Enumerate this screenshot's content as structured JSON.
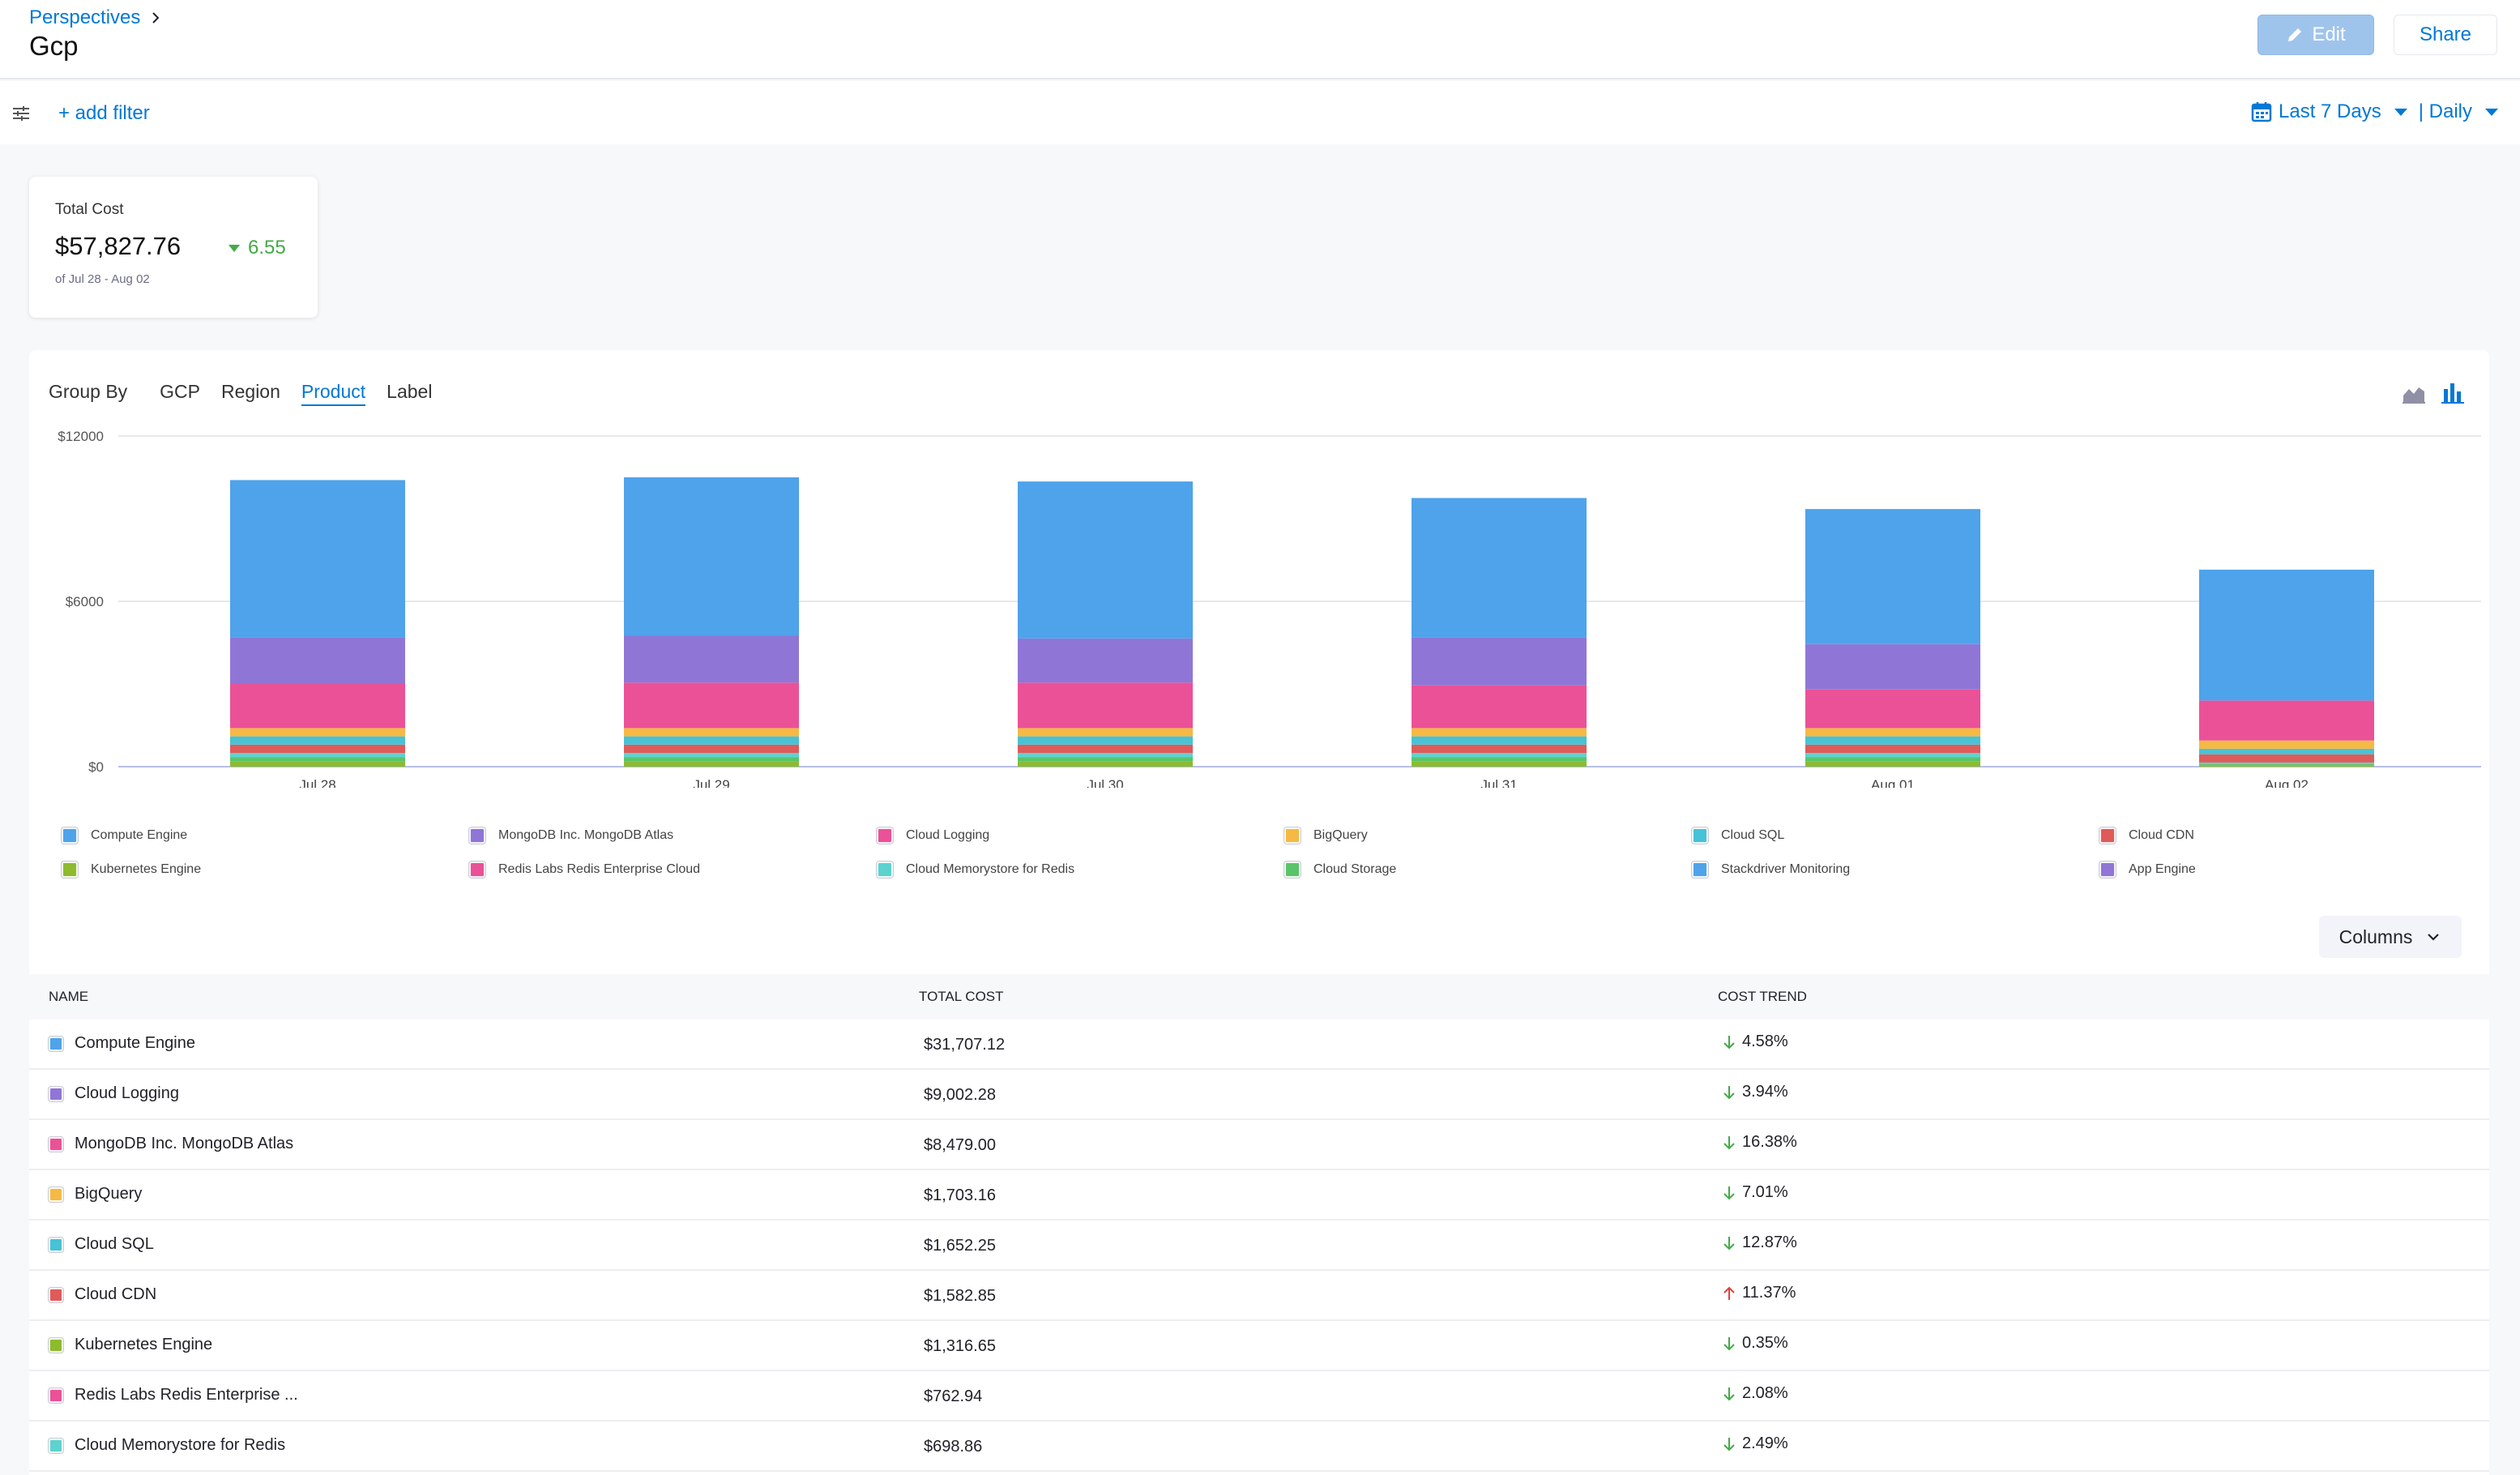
{
  "header": {
    "breadcrumb": "Perspectives",
    "title": "Gcp",
    "edit_label": "Edit",
    "share_label": "Share"
  },
  "filters": {
    "add_filter_label": "+ add filter",
    "date_range": "Last 7 Days",
    "granularity": "| Daily"
  },
  "total_cost": {
    "label": "Total Cost",
    "value": "$57,827.76",
    "trend": "6.55",
    "trend_direction": "down",
    "range": "of Jul 28 - Aug 02"
  },
  "group_by": {
    "label": "Group By",
    "tabs": [
      "GCP",
      "Region",
      "Product",
      "Label"
    ],
    "active": "Product"
  },
  "chart_data": {
    "type": "bar",
    "stacked": true,
    "categories": [
      "Jul 28",
      "Jul 29",
      "Jul 30",
      "Jul 31",
      "Aug 01",
      "Aug 02"
    ],
    "y_ticks": [
      "$0",
      "$6000",
      "$12000"
    ],
    "ylim": [
      0,
      12000
    ],
    "grid": true,
    "legend_position": "bottom",
    "series": [
      {
        "name": "Kubernetes Engine",
        "color": "#8dbb2d",
        "values": [
          200,
          200,
          200,
          200,
          200,
          50
        ]
      },
      {
        "name": "Cloud Storage",
        "color": "#5ac46a",
        "values": [
          150,
          150,
          150,
          150,
          150,
          50
        ]
      },
      {
        "name": "Cloud Memorystore for Redis",
        "color": "#5cd3cf",
        "values": [
          150,
          150,
          150,
          150,
          150,
          50
        ]
      },
      {
        "name": "Cloud CDN",
        "color": "#e05a5a",
        "values": [
          300,
          300,
          300,
          300,
          300,
          300
        ]
      },
      {
        "name": "Cloud SQL",
        "color": "#47c2d6",
        "values": [
          300,
          300,
          300,
          300,
          300,
          200
        ]
      },
      {
        "name": "BigQuery",
        "color": "#f5b944",
        "values": [
          300,
          300,
          300,
          300,
          300,
          300
        ]
      },
      {
        "name": "Cloud Logging",
        "color": "#eb5197",
        "values": [
          1600,
          1650,
          1650,
          1550,
          1400,
          1450
        ]
      },
      {
        "name": "MongoDB Inc. MongoDB Atlas",
        "color": "#8f76d6",
        "values": [
          1700,
          1700,
          1600,
          1750,
          1650,
          0
        ]
      },
      {
        "name": "Compute Engine",
        "color": "#4ea3eb",
        "values": [
          5700,
          5750,
          5700,
          5050,
          4900,
          4750
        ]
      }
    ]
  },
  "legend": [
    {
      "name": "Compute Engine",
      "color": "#4ea3eb"
    },
    {
      "name": "MongoDB Inc. MongoDB Atlas",
      "color": "#8f76d6"
    },
    {
      "name": "Cloud Logging",
      "color": "#eb5197"
    },
    {
      "name": "BigQuery",
      "color": "#f5b944"
    },
    {
      "name": "Cloud SQL",
      "color": "#47c2d6"
    },
    {
      "name": "Cloud CDN",
      "color": "#e05a5a"
    },
    {
      "name": "Kubernetes Engine",
      "color": "#8dbb2d"
    },
    {
      "name": "Redis Labs Redis Enterprise Cloud",
      "color": "#eb5197"
    },
    {
      "name": "Cloud Memorystore for Redis",
      "color": "#5cd3cf"
    },
    {
      "name": "Cloud Storage",
      "color": "#5ac46a"
    },
    {
      "name": "Stackdriver Monitoring",
      "color": "#4ea3eb"
    },
    {
      "name": "App Engine",
      "color": "#8f76d6"
    }
  ],
  "columns_label": "Columns",
  "table": {
    "headers": {
      "name": "NAME",
      "cost": "TOTAL COST",
      "trend": "COST TREND"
    },
    "rows": [
      {
        "name": "Compute Engine",
        "color": "#4ea3eb",
        "cost": "$31,707.12",
        "trend": "4.58%",
        "direction": "down"
      },
      {
        "name": "Cloud Logging",
        "color": "#8f76d6",
        "cost": "$9,002.28",
        "trend": "3.94%",
        "direction": "down"
      },
      {
        "name": "MongoDB Inc. MongoDB Atlas",
        "color": "#eb5197",
        "cost": "$8,479.00",
        "trend": "16.38%",
        "direction": "down"
      },
      {
        "name": "BigQuery",
        "color": "#f5b944",
        "cost": "$1,703.16",
        "trend": "7.01%",
        "direction": "down"
      },
      {
        "name": "Cloud SQL",
        "color": "#47c2d6",
        "cost": "$1,652.25",
        "trend": "12.87%",
        "direction": "down"
      },
      {
        "name": "Cloud CDN",
        "color": "#e05a5a",
        "cost": "$1,582.85",
        "trend": "11.37%",
        "direction": "up"
      },
      {
        "name": "Kubernetes Engine",
        "color": "#8dbb2d",
        "cost": "$1,316.65",
        "trend": "0.35%",
        "direction": "down"
      },
      {
        "name": "Redis Labs Redis Enterprise ...",
        "color": "#eb5197",
        "cost": "$762.94",
        "trend": "2.08%",
        "direction": "down"
      },
      {
        "name": "Cloud Memorystore for Redis",
        "color": "#5cd3cf",
        "cost": "$698.86",
        "trend": "2.49%",
        "direction": "down"
      }
    ]
  }
}
